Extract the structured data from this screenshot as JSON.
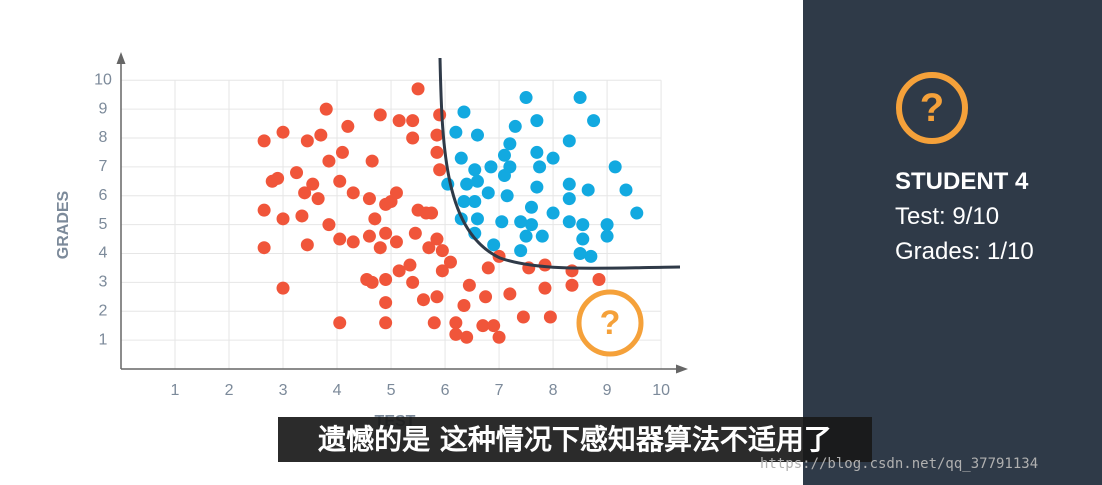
{
  "chart_data": {
    "type": "scatter",
    "x_label": "TEST",
    "y_label": "GRADES",
    "xlim": [
      0,
      10.35
    ],
    "ylim": [
      0,
      10.7
    ],
    "xticks": [
      1,
      2,
      3,
      4,
      5,
      6,
      7,
      8,
      9,
      10
    ],
    "yticks": [
      1,
      2,
      3,
      4,
      5,
      6,
      7,
      8,
      9,
      10
    ],
    "grid": true,
    "annotation": "?",
    "series": [
      {
        "color": "#f0553a",
        "x": [
          2.65,
          3.0,
          2.65,
          2.65,
          2.8,
          2.9,
          3.0,
          3.0,
          3.25,
          3.35,
          3.45,
          3.45,
          3.4,
          3.55,
          3.65,
          3.7,
          3.8,
          3.85,
          3.85,
          4.05,
          4.1,
          4.2,
          4.05,
          4.3,
          4.3,
          4.05,
          4.65,
          4.8,
          4.6,
          4.7,
          4.6,
          4.9,
          4.9,
          4.8,
          5.0,
          4.55,
          4.65,
          4.9,
          5.1,
          5.15,
          4.9,
          4.9,
          5.1,
          5.15,
          5.4,
          5.5,
          5.4,
          5.5,
          5.45,
          5.35,
          5.4,
          5.6,
          5.65,
          5.75,
          5.7,
          5.85,
          5.9,
          5.9,
          5.85,
          5.85,
          5.95,
          5.95,
          5.85,
          5.8,
          6.1,
          6.2,
          6.35,
          6.45,
          6.4,
          6.2,
          6.8,
          6.75,
          6.7,
          6.9,
          7.0,
          7.2,
          7.45,
          7.55,
          7.85,
          7.95,
          7.85,
          8.35,
          8.35,
          8.85,
          7.0
        ],
        "values": [
          7.9,
          8.2,
          5.5,
          4.2,
          6.5,
          6.6,
          5.2,
          2.8,
          6.8,
          5.3,
          4.3,
          7.9,
          6.1,
          6.4,
          5.9,
          8.1,
          9.0,
          7.2,
          5.0,
          6.5,
          7.5,
          8.4,
          4.5,
          4.4,
          6.1,
          1.6,
          7.2,
          8.8,
          5.9,
          5.2,
          4.6,
          5.7,
          4.7,
          4.2,
          5.8,
          3.1,
          3.0,
          3.1,
          4.4,
          3.4,
          2.3,
          1.6,
          6.1,
          8.6,
          8.6,
          9.7,
          8.0,
          5.5,
          4.7,
          3.6,
          3.0,
          2.4,
          5.4,
          5.4,
          4.2,
          7.5,
          8.8,
          6.9,
          8.1,
          4.5,
          4.1,
          3.4,
          2.5,
          1.6,
          3.7,
          1.6,
          2.2,
          2.9,
          1.1,
          1.2,
          3.5,
          2.5,
          1.5,
          1.5,
          1.1,
          2.6,
          1.8,
          3.5,
          2.8,
          1.8,
          3.6,
          3.4,
          2.9,
          3.1,
          3.9
        ]
      },
      {
        "color": "#12a9e0",
        "x": [
          6.35,
          6.2,
          6.6,
          6.3,
          6.55,
          6.6,
          6.4,
          6.05,
          6.35,
          6.55,
          6.3,
          6.6,
          6.55,
          6.85,
          6.8,
          7.1,
          7.2,
          7.1,
          7.15,
          7.05,
          6.9,
          7.3,
          7.2,
          7.5,
          7.4,
          7.4,
          7.5,
          7.6,
          7.7,
          7.7,
          7.75,
          7.7,
          7.8,
          8.0,
          8.0,
          8.3,
          8.3,
          8.3,
          8.3,
          8.5,
          8.55,
          8.55,
          8.5,
          8.65,
          8.75,
          8.7,
          9.0,
          9.0,
          9.15,
          9.35,
          9.55,
          7.6
        ],
        "values": [
          8.9,
          8.2,
          8.1,
          7.3,
          6.9,
          6.5,
          6.4,
          6.4,
          5.8,
          5.8,
          5.2,
          5.2,
          4.7,
          7.0,
          6.1,
          7.4,
          7.8,
          6.7,
          6.0,
          5.1,
          4.3,
          8.4,
          7.0,
          9.4,
          5.1,
          4.1,
          4.6,
          5.6,
          8.6,
          7.5,
          7.0,
          6.3,
          4.6,
          7.3,
          5.4,
          7.9,
          6.4,
          5.9,
          5.1,
          9.4,
          5.0,
          4.5,
          4.0,
          6.2,
          8.6,
          3.9,
          5.0,
          4.6,
          7.0,
          6.2,
          5.4,
          5.0
        ]
      }
    ]
  },
  "panel": {
    "icon": "?",
    "title": "STUDENT 4",
    "test": "Test: 9/10",
    "grades": "Grades: 1/10"
  },
  "subtitle": "遗憾的是 这种情况下感知器算法不适用了",
  "watermark": "https://blog.csdn.net/qq_37791134"
}
